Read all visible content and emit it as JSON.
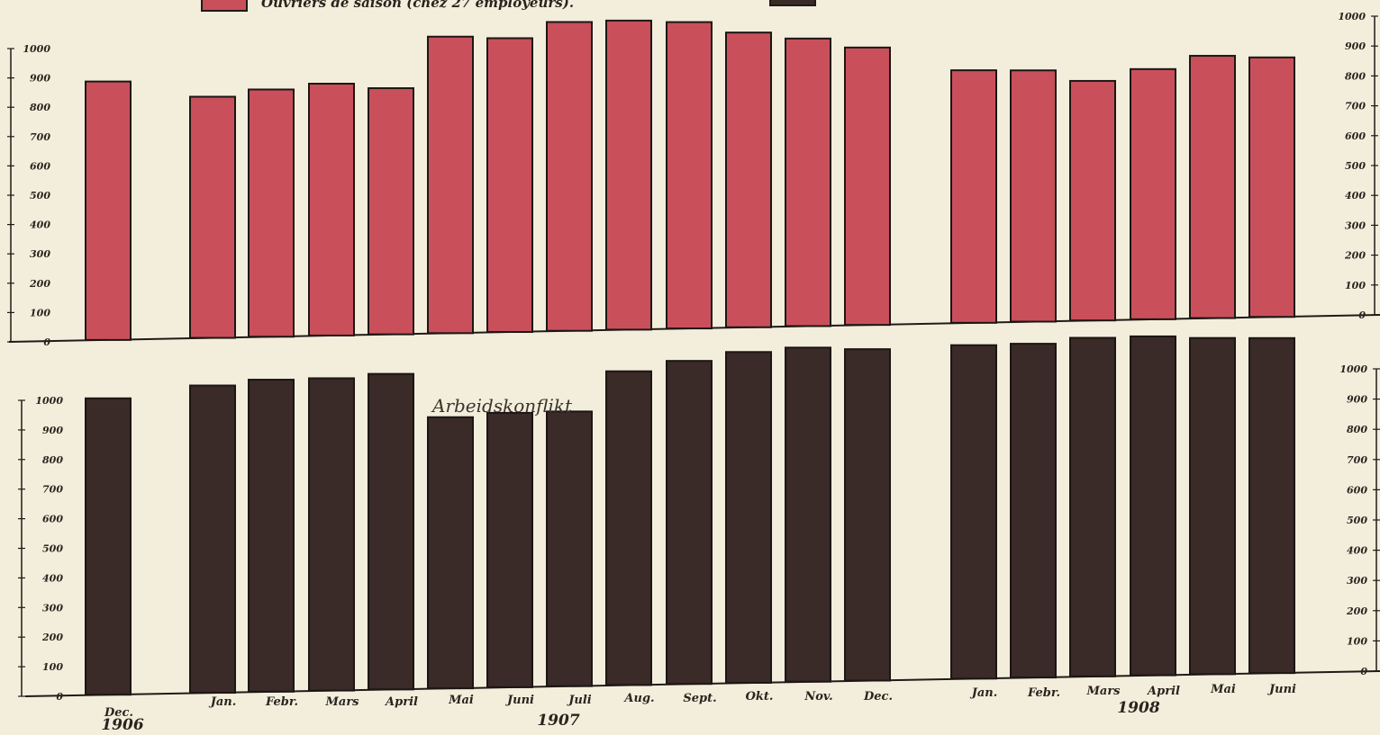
{
  "legend": {
    "seasonal_label": "Ouvriers de saison (chez 27 employeurs).",
    "seasonal_color": "#c9505a",
    "permanent_color": "#3a2a28"
  },
  "annotation": "Arbeidskonflikt",
  "chart_data": [
    {
      "type": "bar",
      "series": [
        {
          "name": "Ouvriers de saison (chez 27 employeurs).",
          "values": [
            880,
            820,
            840,
            855,
            835,
            1005,
            995,
            1045,
            1045,
            1035,
            995,
            970,
            935,
            850,
            845,
            805,
            840,
            880,
            870
          ]
        }
      ],
      "ylim": [
        0,
        1000
      ],
      "yticks_left": [
        "0",
        "100",
        "200",
        "300",
        "400",
        "500",
        "600",
        "700",
        "800",
        "900",
        "1000"
      ],
      "yticks_right": [
        "0",
        "100",
        "200",
        "300",
        "400",
        "500",
        "600",
        "700",
        "800",
        "900",
        "1000"
      ],
      "color": "#c9505a"
    },
    {
      "type": "bar",
      "series": [
        {
          "name": "",
          "values": [
            1000,
            1035,
            1050,
            1050,
            1060,
            910,
            920,
            920,
            1050,
            1080,
            1105,
            1115,
            1105,
            1110,
            1110,
            1125,
            1125,
            1115,
            1110
          ]
        }
      ],
      "ylim": [
        0,
        1000
      ],
      "yticks_left": [
        "0",
        "100",
        "200",
        "300",
        "400",
        "500",
        "600",
        "700",
        "800",
        "900",
        "1000"
      ],
      "yticks_right": [
        "0",
        "100",
        "200",
        "300",
        "400",
        "500",
        "600",
        "700",
        "800",
        "900",
        "1000"
      ],
      "color": "#3a2a28"
    }
  ],
  "categories": [
    "Dec.",
    "Jan.",
    "Febr.",
    "Mars",
    "April",
    "Mai",
    "Juni",
    "Juli",
    "Aug.",
    "Sept.",
    "Okt.",
    "Nov.",
    "Dec.",
    "Jan.",
    "Febr.",
    "Mars",
    "April",
    "Mai",
    "Juni"
  ],
  "years": [
    "1906",
    "1907",
    "1908"
  ]
}
